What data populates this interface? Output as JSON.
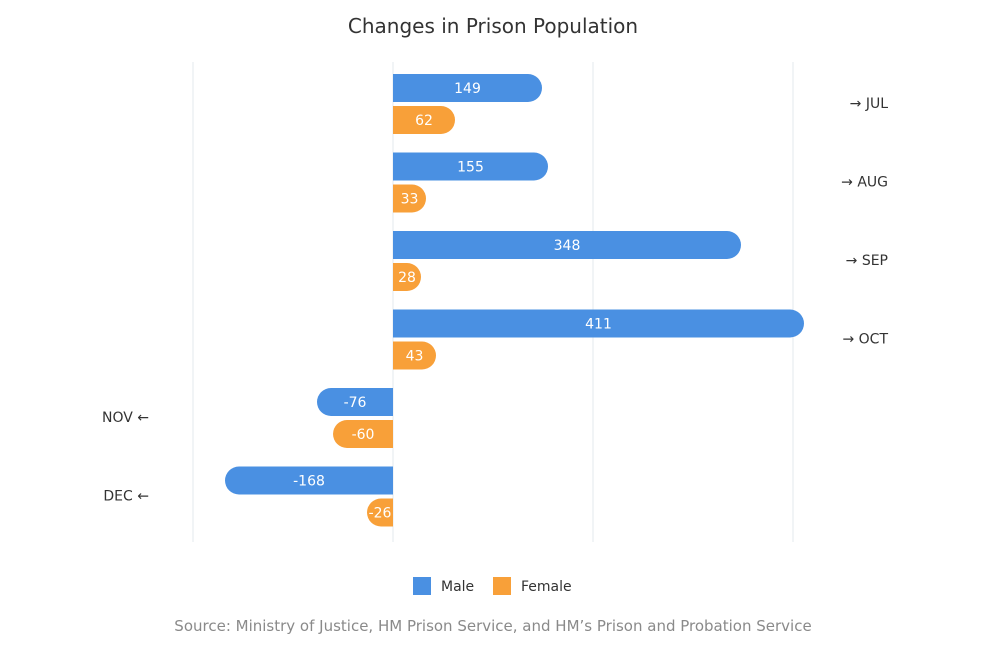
{
  "chart_data": {
    "type": "bar",
    "orientation": "horizontal",
    "title": "Changes in Prison Population",
    "categories": [
      "JUL",
      "AUG",
      "SEP",
      "OCT",
      "NOV",
      "DEC"
    ],
    "category_labels": [
      "→ JUL",
      "→ AUG",
      "→ SEP",
      "→ OCT",
      "NOV ←",
      "DEC ←"
    ],
    "series": [
      {
        "name": "Male",
        "color": "#4a90e2",
        "values": [
          149,
          155,
          348,
          411,
          -76,
          -168
        ]
      },
      {
        "name": "Female",
        "color": "#f8a039",
        "values": [
          62,
          33,
          28,
          43,
          -60,
          -26
        ]
      }
    ],
    "xlim": [
      -200,
      400
    ],
    "grid": true,
    "legend_position": "bottom",
    "data_labels": true,
    "source": "Source: Ministry of Justice, HM Prison Service, and HM’s Prison and Probation Service"
  }
}
